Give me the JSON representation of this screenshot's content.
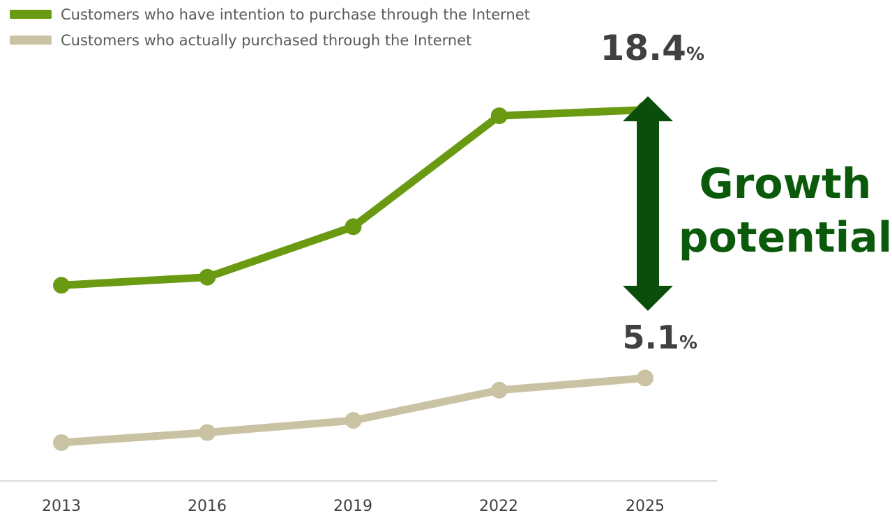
{
  "chart_data": {
    "type": "line",
    "categories": [
      "2013",
      "2016",
      "2019",
      "2022",
      "2025"
    ],
    "series": [
      {
        "name": "Customers who have intention to purchase through the Internet",
        "color": "#6a9a12",
        "values": [
          9.7,
          10.1,
          12.6,
          18.1,
          18.4
        ]
      },
      {
        "name": "Customers who actually purchased through the Internet",
        "color": "#c9c3a3",
        "values": [
          1.9,
          2.4,
          3.0,
          4.5,
          5.1
        ]
      }
    ],
    "ylim": [
      0,
      20.8
    ],
    "grid": false,
    "legend": "top-left",
    "annotations": {
      "top_value": "18.4",
      "top_unit": "%",
      "bottom_value": "5.1",
      "bottom_unit": "%",
      "gap_label_line1": "Growth",
      "gap_label_line2": "potential",
      "gap_color": "#0b4d0b"
    }
  }
}
